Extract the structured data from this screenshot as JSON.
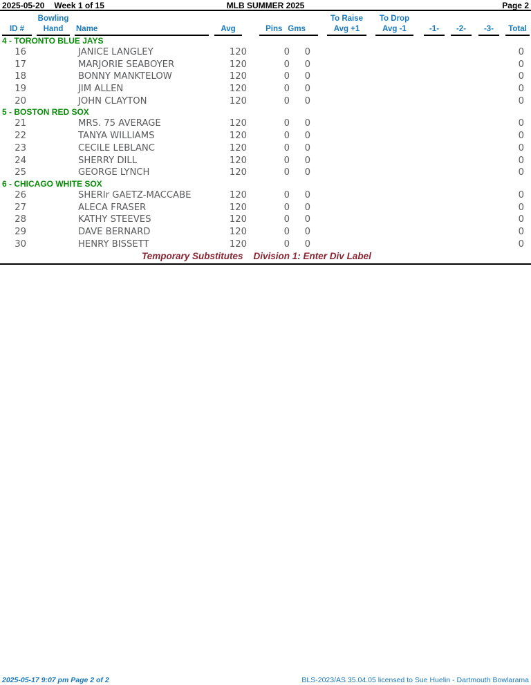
{
  "page": {
    "report_date": "2025-05-20",
    "week_label": "Week 1 of 15",
    "title": "MLB SUMMER 2025",
    "page_label": "Page 2"
  },
  "columns": {
    "id": "ID #",
    "hand_top": "Bowling",
    "hand": "Hand",
    "name": "Name",
    "avg": "Avg",
    "pins": "Pins",
    "gms": "Gms",
    "to_raise_top": "To Raise",
    "to_raise": "Avg +1",
    "to_drop_top": "To Drop",
    "to_drop": "Avg -1",
    "game1": "-1-",
    "game2": "-2-",
    "game3": "-3-",
    "total": "Total"
  },
  "teams": [
    {
      "label": "4 - TORONTO BLUE JAYS",
      "players": [
        {
          "id": "16",
          "name": "JANICE LANGLEY",
          "avg": "120",
          "pins": "0",
          "gms": "0",
          "total": "0"
        },
        {
          "id": "17",
          "name": "MARJORIE SEABOYER",
          "avg": "120",
          "pins": "0",
          "gms": "0",
          "total": "0"
        },
        {
          "id": "18",
          "name": "BONNY MANKTELOW",
          "avg": "120",
          "pins": "0",
          "gms": "0",
          "total": "0"
        },
        {
          "id": "19",
          "name": "JIM ALLEN",
          "avg": "120",
          "pins": "0",
          "gms": "0",
          "total": "0"
        },
        {
          "id": "20",
          "name": "JOHN CLAYTON",
          "avg": "120",
          "pins": "0",
          "gms": "0",
          "total": "0"
        }
      ]
    },
    {
      "label": "5 - BOSTON RED SOX",
      "players": [
        {
          "id": "21",
          "name": "MRS. 75 AVERAGE",
          "avg": "120",
          "pins": "0",
          "gms": "0",
          "total": "0"
        },
        {
          "id": "22",
          "name": "TANYA WILLIAMS",
          "avg": "120",
          "pins": "0",
          "gms": "0",
          "total": "0"
        },
        {
          "id": "23",
          "name": "CECILE LEBLANC",
          "avg": "120",
          "pins": "0",
          "gms": "0",
          "total": "0"
        },
        {
          "id": "24",
          "name": "SHERRY DILL",
          "avg": "120",
          "pins": "0",
          "gms": "0",
          "total": "0"
        },
        {
          "id": "25",
          "name": "GEORGE LYNCH",
          "avg": "120",
          "pins": "0",
          "gms": "0",
          "total": "0"
        }
      ]
    },
    {
      "label": "6 - CHICAGO WHITE SOX",
      "players": [
        {
          "id": "26",
          "name": "SHERIr GAETZ-MACCABE",
          "avg": "120",
          "pins": "0",
          "gms": "0",
          "total": "0"
        },
        {
          "id": "27",
          "name": "ALECA FRASER",
          "avg": "120",
          "pins": "0",
          "gms": "0",
          "total": "0"
        },
        {
          "id": "28",
          "name": "KATHY STEEVES",
          "avg": "120",
          "pins": "0",
          "gms": "0",
          "total": "0"
        },
        {
          "id": "29",
          "name": "DAVE BERNARD",
          "avg": "120",
          "pins": "0",
          "gms": "0",
          "total": "0"
        },
        {
          "id": "30",
          "name": "HENRY BISSETT",
          "avg": "120",
          "pins": "0",
          "gms": "0",
          "total": "0"
        }
      ]
    }
  ],
  "substitutes_note": {
    "left": "Temporary Substitutes",
    "right": "Division 1: Enter Div Label"
  },
  "footer": {
    "left": "2025-05-17  9:07 pm  Page 2 of 2",
    "right": "BLS-2023/AS 35.04.05 licensed to Sue Huelin - Dartmouth Bowlarama"
  },
  "colors": {
    "header_blue": "#1878be",
    "team_green": "#0a8a0a",
    "row_gray": "#595a5c",
    "note_maroon": "#8b2433",
    "rule_black": "#000000"
  }
}
